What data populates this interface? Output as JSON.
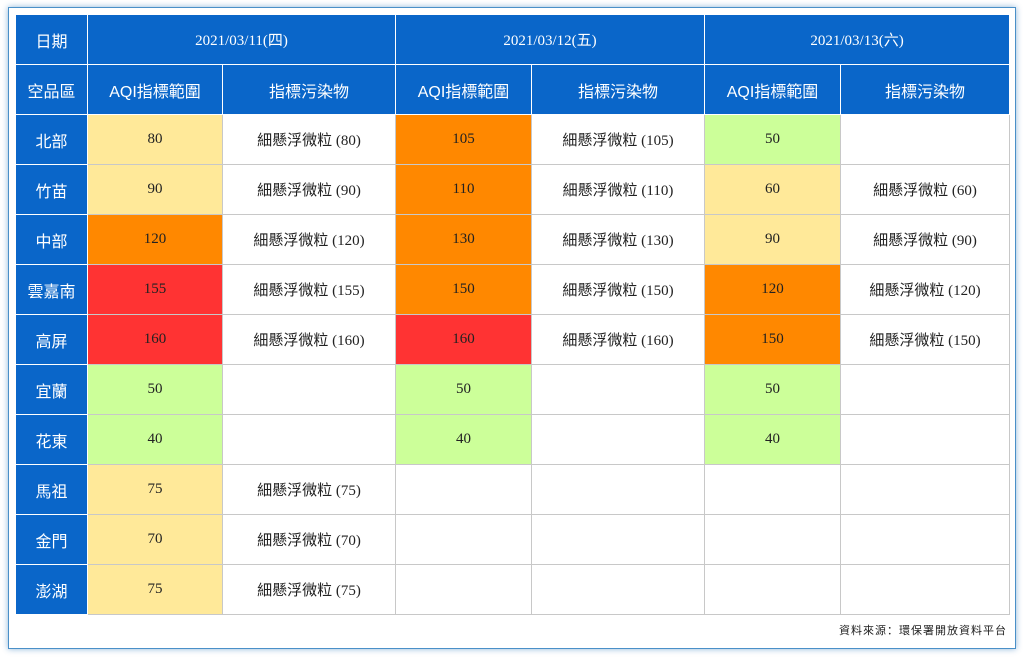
{
  "header": {
    "date_label": "日期",
    "region_label": "空品區",
    "aqi_col_label": "AQI指標範圍",
    "pollutant_col_label": "指標污染物",
    "dates": [
      "2021/03/11(四)",
      "2021/03/12(五)",
      "2021/03/13(六)"
    ]
  },
  "colors": {
    "header_bg": "#0a66c9",
    "green": "#ccff99",
    "yellow": "#ffe999",
    "orange": "#ff8800",
    "red": "#ff3333"
  },
  "rows": [
    {
      "region": "北部",
      "days": [
        {
          "aqi": "80",
          "level": "yellow",
          "pollutant": "細懸浮微粒 (80)"
        },
        {
          "aqi": "105",
          "level": "orange",
          "pollutant": "細懸浮微粒 (105)"
        },
        {
          "aqi": "50",
          "level": "green",
          "pollutant": ""
        }
      ]
    },
    {
      "region": "竹苗",
      "days": [
        {
          "aqi": "90",
          "level": "yellow",
          "pollutant": "細懸浮微粒 (90)"
        },
        {
          "aqi": "110",
          "level": "orange",
          "pollutant": "細懸浮微粒 (110)"
        },
        {
          "aqi": "60",
          "level": "yellow",
          "pollutant": "細懸浮微粒 (60)"
        }
      ]
    },
    {
      "region": "中部",
      "days": [
        {
          "aqi": "120",
          "level": "orange",
          "pollutant": "細懸浮微粒 (120)"
        },
        {
          "aqi": "130",
          "level": "orange",
          "pollutant": "細懸浮微粒 (130)"
        },
        {
          "aqi": "90",
          "level": "yellow",
          "pollutant": "細懸浮微粒 (90)"
        }
      ]
    },
    {
      "region": "雲嘉南",
      "days": [
        {
          "aqi": "155",
          "level": "red",
          "pollutant": "細懸浮微粒 (155)"
        },
        {
          "aqi": "150",
          "level": "orange",
          "pollutant": "細懸浮微粒 (150)"
        },
        {
          "aqi": "120",
          "level": "orange",
          "pollutant": "細懸浮微粒 (120)"
        }
      ]
    },
    {
      "region": "高屏",
      "days": [
        {
          "aqi": "160",
          "level": "red",
          "pollutant": "細懸浮微粒 (160)"
        },
        {
          "aqi": "160",
          "level": "red",
          "pollutant": "細懸浮微粒 (160)"
        },
        {
          "aqi": "150",
          "level": "orange",
          "pollutant": "細懸浮微粒 (150)"
        }
      ]
    },
    {
      "region": "宜蘭",
      "days": [
        {
          "aqi": "50",
          "level": "green",
          "pollutant": ""
        },
        {
          "aqi": "50",
          "level": "green",
          "pollutant": ""
        },
        {
          "aqi": "50",
          "level": "green",
          "pollutant": ""
        }
      ]
    },
    {
      "region": "花東",
      "days": [
        {
          "aqi": "40",
          "level": "green",
          "pollutant": ""
        },
        {
          "aqi": "40",
          "level": "green",
          "pollutant": ""
        },
        {
          "aqi": "40",
          "level": "green",
          "pollutant": ""
        }
      ]
    },
    {
      "region": "馬祖",
      "days": [
        {
          "aqi": "75",
          "level": "yellow",
          "pollutant": "細懸浮微粒 (75)"
        },
        {
          "aqi": "",
          "level": "empty",
          "pollutant": ""
        },
        {
          "aqi": "",
          "level": "empty",
          "pollutant": ""
        }
      ]
    },
    {
      "region": "金門",
      "days": [
        {
          "aqi": "70",
          "level": "yellow",
          "pollutant": "細懸浮微粒 (70)"
        },
        {
          "aqi": "",
          "level": "empty",
          "pollutant": ""
        },
        {
          "aqi": "",
          "level": "empty",
          "pollutant": ""
        }
      ]
    },
    {
      "region": "澎湖",
      "days": [
        {
          "aqi": "75",
          "level": "yellow",
          "pollutant": "細懸浮微粒 (75)"
        },
        {
          "aqi": "",
          "level": "empty",
          "pollutant": ""
        },
        {
          "aqi": "",
          "level": "empty",
          "pollutant": ""
        }
      ]
    }
  ],
  "footer": {
    "source": "資料來源：環保署開放資料平台"
  }
}
